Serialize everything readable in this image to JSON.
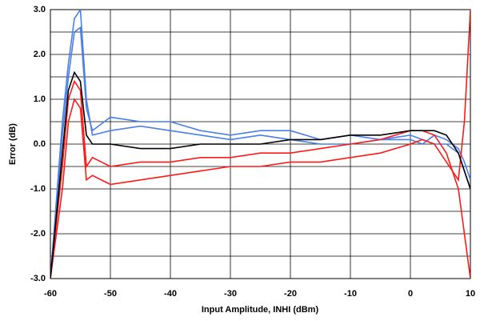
{
  "chart_data": {
    "type": "line",
    "x_label": "Input Amplitude, INHI (dBm)",
    "y_label": "Error (dB)",
    "x": [
      -60,
      -58,
      -57,
      -56,
      -55,
      -54,
      -53,
      -50,
      -45,
      -40,
      -35,
      -30,
      -25,
      -20,
      -15,
      -10,
      -5,
      0,
      2,
      4,
      6,
      8,
      9,
      10
    ],
    "series": [
      {
        "color": "#4a7fe8",
        "values": [
          -3,
          0.5,
          1.8,
          2.8,
          3.0,
          1.0,
          0.2,
          0.3,
          0.4,
          0.3,
          0.2,
          0.1,
          0.2,
          0.1,
          0.0,
          0.0,
          0.1,
          0.2,
          0.1,
          0.0,
          0.0,
          -0.2,
          -0.6,
          -1.0
        ]
      },
      {
        "color": "#4a7fe8",
        "values": [
          -3,
          0.2,
          1.5,
          2.5,
          2.6,
          0.8,
          0.3,
          0.6,
          0.5,
          0.5,
          0.3,
          0.2,
          0.3,
          0.3,
          0.1,
          0.2,
          0.1,
          0.1,
          0.0,
          0.2,
          0.1,
          -0.1,
          -0.4,
          -0.8
        ]
      },
      {
        "color": "#ff1a1a",
        "values": [
          -3,
          -0.5,
          1.0,
          1.4,
          1.2,
          -0.5,
          -0.3,
          -0.5,
          -0.4,
          -0.4,
          -0.3,
          -0.3,
          -0.2,
          -0.2,
          -0.1,
          0.0,
          0.1,
          0.3,
          0.3,
          0.2,
          -0.2,
          -1.0,
          -2.0,
          -3.0
        ]
      },
      {
        "color": "#ff1a1a",
        "values": [
          -3,
          -1.0,
          0.5,
          1.0,
          0.8,
          -0.8,
          -0.7,
          -0.9,
          -0.8,
          -0.7,
          -0.6,
          -0.5,
          -0.5,
          -0.4,
          -0.4,
          -0.3,
          -0.2,
          0.0,
          0.1,
          0.0,
          -0.4,
          -0.8,
          0.5,
          3.0
        ]
      },
      {
        "color": "#000000",
        "values": [
          -3,
          -0.2,
          1.2,
          1.6,
          1.4,
          0.2,
          0.0,
          0.0,
          -0.1,
          -0.1,
          0.0,
          0.0,
          0.0,
          0.1,
          0.1,
          0.2,
          0.2,
          0.3,
          0.3,
          0.3,
          0.2,
          -0.2,
          -0.6,
          -1.0
        ]
      }
    ],
    "xlim": [
      -60,
      10
    ],
    "xticks": [
      -60,
      -50,
      -40,
      -30,
      -20,
      -10,
      0,
      10
    ],
    "ylim": [
      -3,
      3
    ],
    "yticks": [
      {
        "value": 3,
        "label": "3.0"
      },
      {
        "value": 2,
        "label": "2.0"
      },
      {
        "value": 1,
        "label": "1.0"
      },
      {
        "value": 0,
        "label": "0.0"
      },
      {
        "value": -1,
        "label": "-1.0"
      },
      {
        "value": -2,
        "label": "-2.0"
      },
      {
        "value": -3,
        "label": "-3.0"
      }
    ],
    "y_minor_grid": [
      2.5,
      1.5,
      0.5,
      -0.5,
      -1.5,
      -2.5
    ],
    "grid": true
  }
}
